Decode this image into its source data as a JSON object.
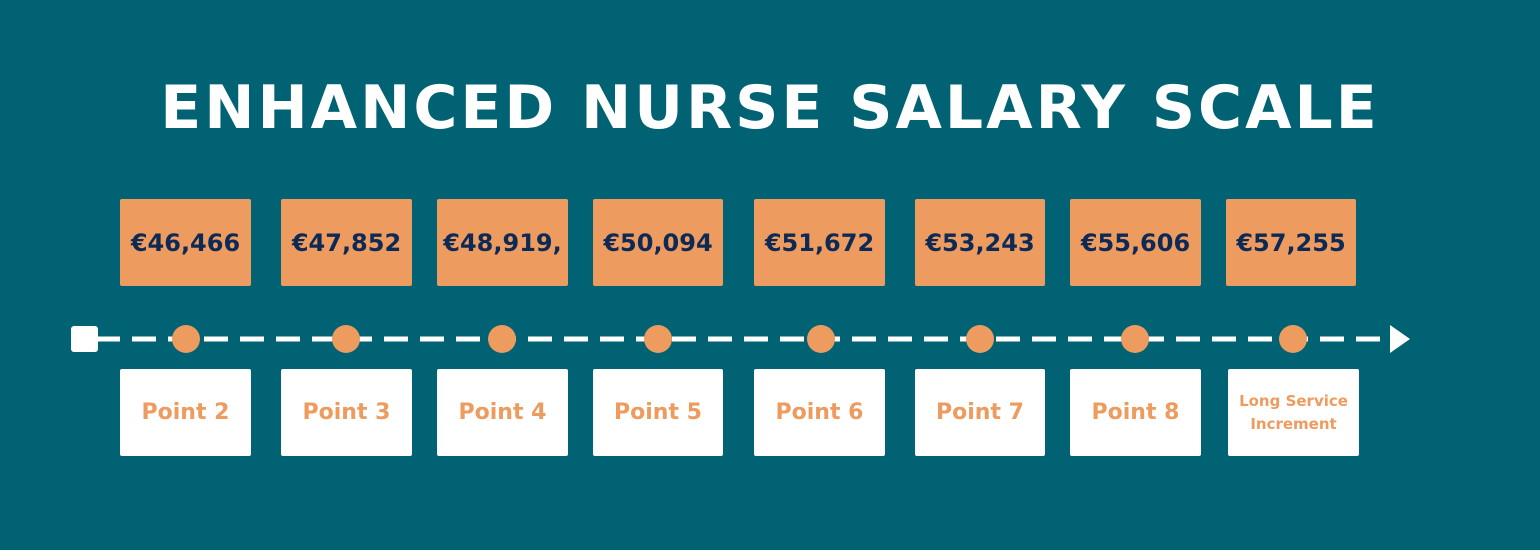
{
  "title": "ENHANCED NURSE SALARY SCALE",
  "colors": {
    "background": "#006272",
    "accent": "#ed9b5e",
    "salary_text": "#0c2a55",
    "line": "#ffffff"
  },
  "steps": [
    {
      "salary": "€46,466",
      "point": "Point 2"
    },
    {
      "salary": "€47,852",
      "point": "Point 3"
    },
    {
      "salary": "€48,919,",
      "point": "Point 4"
    },
    {
      "salary": "€50,094",
      "point": "Point 5"
    },
    {
      "salary": "€51,672",
      "point": "Point 6"
    },
    {
      "salary": "€53,243",
      "point": "Point 7"
    },
    {
      "salary": "€55,606",
      "point": "Point 8"
    },
    {
      "salary": "€57,255",
      "point": "Long Service Increment"
    }
  ]
}
